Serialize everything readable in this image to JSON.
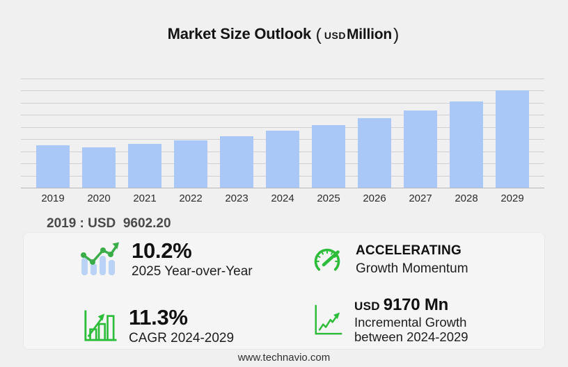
{
  "title": {
    "main": "Market Size Outlook",
    "paren_open": "(",
    "unit": "USD",
    "unit_scale": "Million",
    "paren_close": ")"
  },
  "chart_data": {
    "type": "bar",
    "title": "Market Size Outlook (USD Million)",
    "categories": [
      "2019",
      "2020",
      "2021",
      "2022",
      "2023",
      "2024",
      "2025",
      "2026",
      "2027",
      "2028",
      "2029"
    ],
    "values": [
      9602.2,
      9105,
      9915,
      10705,
      11755,
      12950,
      14270,
      15825,
      17605,
      19655,
      22120
    ],
    "labeled_values": {
      "2019": "9602.20"
    },
    "xlabel": "",
    "ylabel": "USD Million",
    "ylim": [
      0,
      24800
    ],
    "grid": "horizontal",
    "legend": "none",
    "bar_color": "#aac8f7"
  },
  "base_year_label": "2019 : USD  9602.20",
  "stats": {
    "yoy": {
      "value": "10.2%",
      "label": "2025 Year-over-Year",
      "icon": "bar-trend-icon"
    },
    "momentum": {
      "value": "ACCELERATING",
      "label": "Growth Momentum",
      "icon": "gauge-icon"
    },
    "cagr": {
      "value": "11.3%",
      "label": "CAGR 2024-2029",
      "icon": "bar-growth-arrow-icon"
    },
    "incremental": {
      "currency": "USD",
      "value": "9170 Mn",
      "label_line1": "Incremental Growth",
      "label_line2": "between 2024-2029",
      "icon": "line-growth-icon"
    }
  },
  "footer": {
    "url": "www.technavio.com"
  },
  "colors": {
    "page_bg": "#f0f0f1",
    "panel_bg": "#f5f5f6",
    "bar": "#aac8f7",
    "gridline": "#cfcfd4",
    "baseline": "#b5b5ba",
    "accent_green": "#2dbd3a",
    "icon_line_green": "#3aad49",
    "icon_bar_blue": "#b9d2f6",
    "title_text": "#141414",
    "muted_text": "#4a4a4a",
    "footer_text": "#2f2f2f"
  }
}
